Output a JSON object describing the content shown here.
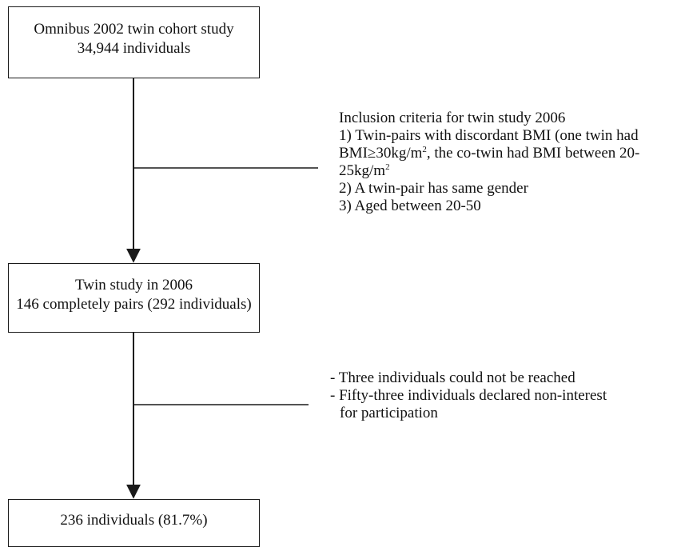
{
  "flowchart": {
    "box_1": {
      "line_1": "Omnibus 2002 twin cohort study",
      "line_2": "34,944 individuals"
    },
    "box_2": {
      "line_1": "Twin study in 2006",
      "line_2": "146 completely pairs (292 individuals)"
    },
    "box_3": {
      "line_1": "236 individuals (81.7%)"
    },
    "inclusion_note": {
      "heading": "Inclusion criteria for twin study 2006",
      "criterion_1_a": "1) Twin-pairs with discordant BMI (one twin had",
      "criterion_1_b_pre": "BMI≥30kg/m",
      "criterion_1_b_sup": "2",
      "criterion_1_b_post": ", the co-twin had BMI between 20-",
      "criterion_1_c": "25kg/m",
      "criterion_1_c_sup": "2",
      "criterion_2": "2) A twin-pair has same gender",
      "criterion_3": "3) Aged between 20-50"
    },
    "exclusion_note": {
      "item_1": "- Three individuals could not be reached",
      "item_2_a": "- Fifty-three individuals declared non-interest",
      "item_2_b": "for participation"
    }
  }
}
